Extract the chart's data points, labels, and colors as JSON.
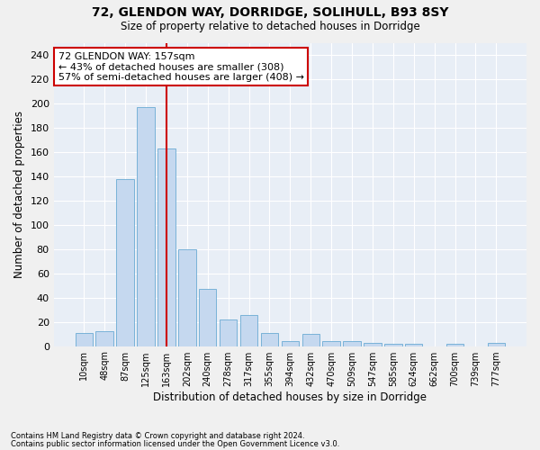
{
  "title1": "72, GLENDON WAY, DORRIDGE, SOLIHULL, B93 8SY",
  "title2": "Size of property relative to detached houses in Dorridge",
  "xlabel": "Distribution of detached houses by size in Dorridge",
  "ylabel": "Number of detached properties",
  "footnote1": "Contains HM Land Registry data © Crown copyright and database right 2024.",
  "footnote2": "Contains public sector information licensed under the Open Government Licence v3.0.",
  "bar_labels": [
    "10sqm",
    "48sqm",
    "87sqm",
    "125sqm",
    "163sqm",
    "202sqm",
    "240sqm",
    "278sqm",
    "317sqm",
    "355sqm",
    "394sqm",
    "432sqm",
    "470sqm",
    "509sqm",
    "547sqm",
    "585sqm",
    "624sqm",
    "662sqm",
    "700sqm",
    "739sqm",
    "777sqm"
  ],
  "bar_values": [
    11,
    12,
    138,
    197,
    163,
    80,
    47,
    22,
    26,
    11,
    4,
    10,
    4,
    4,
    3,
    2,
    2,
    0,
    2,
    0,
    3
  ],
  "bar_color": "#c5d8ef",
  "bar_edge_color": "#6aaad4",
  "bg_color": "#e8eef6",
  "fig_color": "#f0f0f0",
  "grid_color": "#ffffff",
  "annotation_text": "72 GLENDON WAY: 157sqm\n← 43% of detached houses are smaller (308)\n57% of semi-detached houses are larger (408) →",
  "annotation_box_color": "#ffffff",
  "annotation_box_edge": "#cc0000",
  "vline_color": "#cc0000",
  "vline_x": 4,
  "ylim": [
    0,
    250
  ],
  "yticks": [
    0,
    20,
    40,
    60,
    80,
    100,
    120,
    140,
    160,
    180,
    200,
    220,
    240
  ]
}
